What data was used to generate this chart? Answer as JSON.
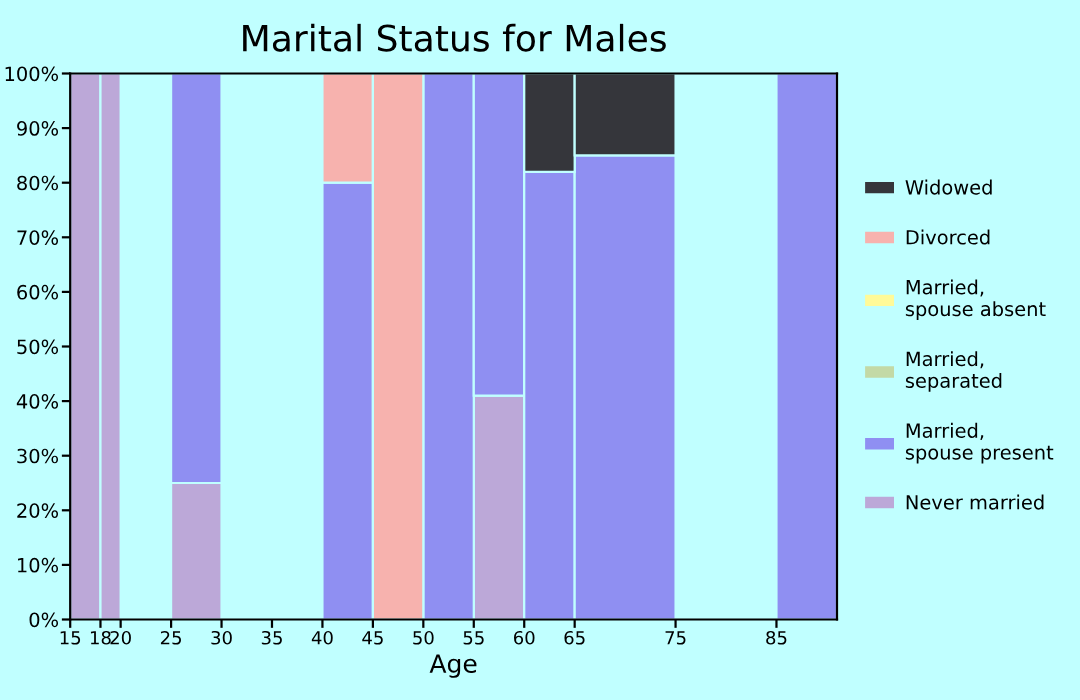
{
  "chart_data": {
    "type": "bar",
    "title": "Marital Status for Males",
    "xlabel": "Age",
    "stacked": true,
    "x": [
      16.5,
      19,
      22.5,
      27.5,
      32.5,
      37.5,
      42.5,
      47.5,
      52.5,
      57.5,
      62.5,
      70,
      80,
      88
    ],
    "series": [
      {
        "name": "Never married",
        "color": "#bca8d8",
        "values": [
          100,
          100,
          null,
          25,
          null,
          null,
          null,
          null,
          null,
          41,
          null,
          null,
          null,
          null
        ]
      },
      {
        "name": "Married,\nspouse present",
        "color": "#8f8ff2",
        "values": [
          null,
          null,
          null,
          75,
          null,
          null,
          80,
          null,
          100,
          59,
          82,
          85,
          null,
          100
        ]
      },
      {
        "name": "Married,\nseparated",
        "color": "#c3d9a6",
        "values": [
          null,
          null,
          null,
          null,
          null,
          null,
          null,
          null,
          null,
          null,
          null,
          null,
          null,
          null
        ]
      },
      {
        "name": "Married,\nspouse absent",
        "color": "#fffa99",
        "values": [
          null,
          null,
          null,
          null,
          null,
          null,
          null,
          null,
          null,
          null,
          null,
          null,
          null,
          null
        ]
      },
      {
        "name": "Divorced",
        "color": "#f7b2ae",
        "values": [
          null,
          null,
          null,
          null,
          null,
          null,
          20,
          100,
          null,
          null,
          null,
          null,
          null,
          null
        ]
      },
      {
        "name": "Widowed",
        "color": "#35363b",
        "values": [
          null,
          null,
          null,
          null,
          null,
          null,
          null,
          null,
          null,
          null,
          18,
          15,
          null,
          null
        ]
      }
    ],
    "xlim": [
      15,
      91
    ],
    "xticks": [
      15,
      18,
      20,
      25,
      30,
      35,
      40,
      45,
      50,
      55,
      60,
      65,
      75,
      85
    ],
    "ylim": [
      0,
      100
    ],
    "yticks": [
      {
        "value": 0,
        "label": "0%"
      },
      {
        "value": 10,
        "label": "10%"
      },
      {
        "value": 20,
        "label": "20%"
      },
      {
        "value": 30,
        "label": "30%"
      },
      {
        "value": 40,
        "label": "40%"
      },
      {
        "value": 50,
        "label": "50%"
      },
      {
        "value": 60,
        "label": "60%"
      },
      {
        "value": 70,
        "label": "70%"
      },
      {
        "value": 80,
        "label": "80%"
      },
      {
        "value": 90,
        "label": "90%"
      },
      {
        "value": 100,
        "label": "100%"
      }
    ],
    "grid": false,
    "legend": "right"
  }
}
